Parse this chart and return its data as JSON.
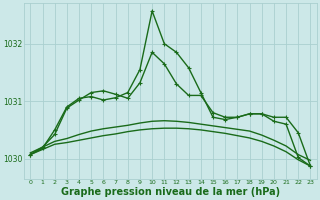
{
  "bg_color": "#cce8e8",
  "grid_color": "#aad0d0",
  "line_color": "#1a6b1a",
  "xlabel": "Graphe pression niveau de la mer (hPa)",
  "xlabel_fontsize": 7,
  "ylabel_ticks": [
    1030,
    1031,
    1032
  ],
  "xlim": [
    -0.5,
    23.5
  ],
  "ylim": [
    1029.65,
    1032.7
  ],
  "xticks": [
    0,
    1,
    2,
    3,
    4,
    5,
    6,
    7,
    8,
    9,
    10,
    11,
    12,
    13,
    14,
    15,
    16,
    17,
    18,
    19,
    20,
    21,
    22,
    23
  ],
  "series": [
    {
      "x": [
        0,
        1,
        2,
        3,
        4,
        5,
        6,
        7,
        8,
        9,
        10,
        11,
        12,
        13,
        14,
        15,
        16,
        17,
        18,
        19,
        20,
        21,
        22,
        23
      ],
      "y": [
        1030.07,
        1030.16,
        1030.25,
        1030.28,
        1030.32,
        1030.36,
        1030.4,
        1030.43,
        1030.47,
        1030.5,
        1030.52,
        1030.53,
        1030.53,
        1030.52,
        1030.5,
        1030.47,
        1030.44,
        1030.4,
        1030.36,
        1030.3,
        1030.22,
        1030.12,
        1029.98,
        1029.87
      ],
      "has_markers": false,
      "linewidth": 1.0
    },
    {
      "x": [
        0,
        1,
        2,
        3,
        4,
        5,
        6,
        7,
        8,
        9,
        10,
        11,
        12,
        13,
        14,
        15,
        16,
        17,
        18,
        19,
        20,
        21,
        22,
        23
      ],
      "y": [
        1030.1,
        1030.2,
        1030.3,
        1030.35,
        1030.42,
        1030.48,
        1030.52,
        1030.55,
        1030.58,
        1030.62,
        1030.65,
        1030.66,
        1030.65,
        1030.63,
        1030.6,
        1030.57,
        1030.54,
        1030.51,
        1030.48,
        1030.41,
        1030.32,
        1030.22,
        1030.07,
        1029.97
      ],
      "has_markers": false,
      "linewidth": 1.0
    },
    {
      "x": [
        0,
        1,
        2,
        3,
        4,
        5,
        6,
        7,
        8,
        9,
        10,
        11,
        12,
        13,
        14,
        15,
        16,
        17,
        18,
        19,
        20,
        21,
        22,
        23
      ],
      "y": [
        1030.07,
        1030.18,
        1030.5,
        1030.9,
        1031.05,
        1031.08,
        1031.02,
        1031.06,
        1031.15,
        1031.55,
        1032.57,
        1032.0,
        1031.85,
        1031.58,
        1031.15,
        1030.72,
        1030.68,
        1030.72,
        1030.78,
        1030.78,
        1030.72,
        1030.72,
        1030.45,
        1029.87
      ],
      "has_markers": true,
      "linewidth": 1.0
    },
    {
      "x": [
        0,
        1,
        2,
        3,
        4,
        5,
        6,
        7,
        8,
        9,
        10,
        11,
        12,
        13,
        14,
        15,
        16,
        17,
        18,
        19,
        20,
        21,
        22,
        23
      ],
      "y": [
        1030.07,
        1030.2,
        1030.42,
        1030.88,
        1031.02,
        1031.15,
        1031.18,
        1031.12,
        1031.05,
        1031.32,
        1031.85,
        1031.65,
        1031.3,
        1031.1,
        1031.1,
        1030.8,
        1030.72,
        1030.72,
        1030.78,
        1030.78,
        1030.65,
        1030.6,
        1030.02,
        1029.87
      ],
      "has_markers": true,
      "linewidth": 1.0
    }
  ]
}
